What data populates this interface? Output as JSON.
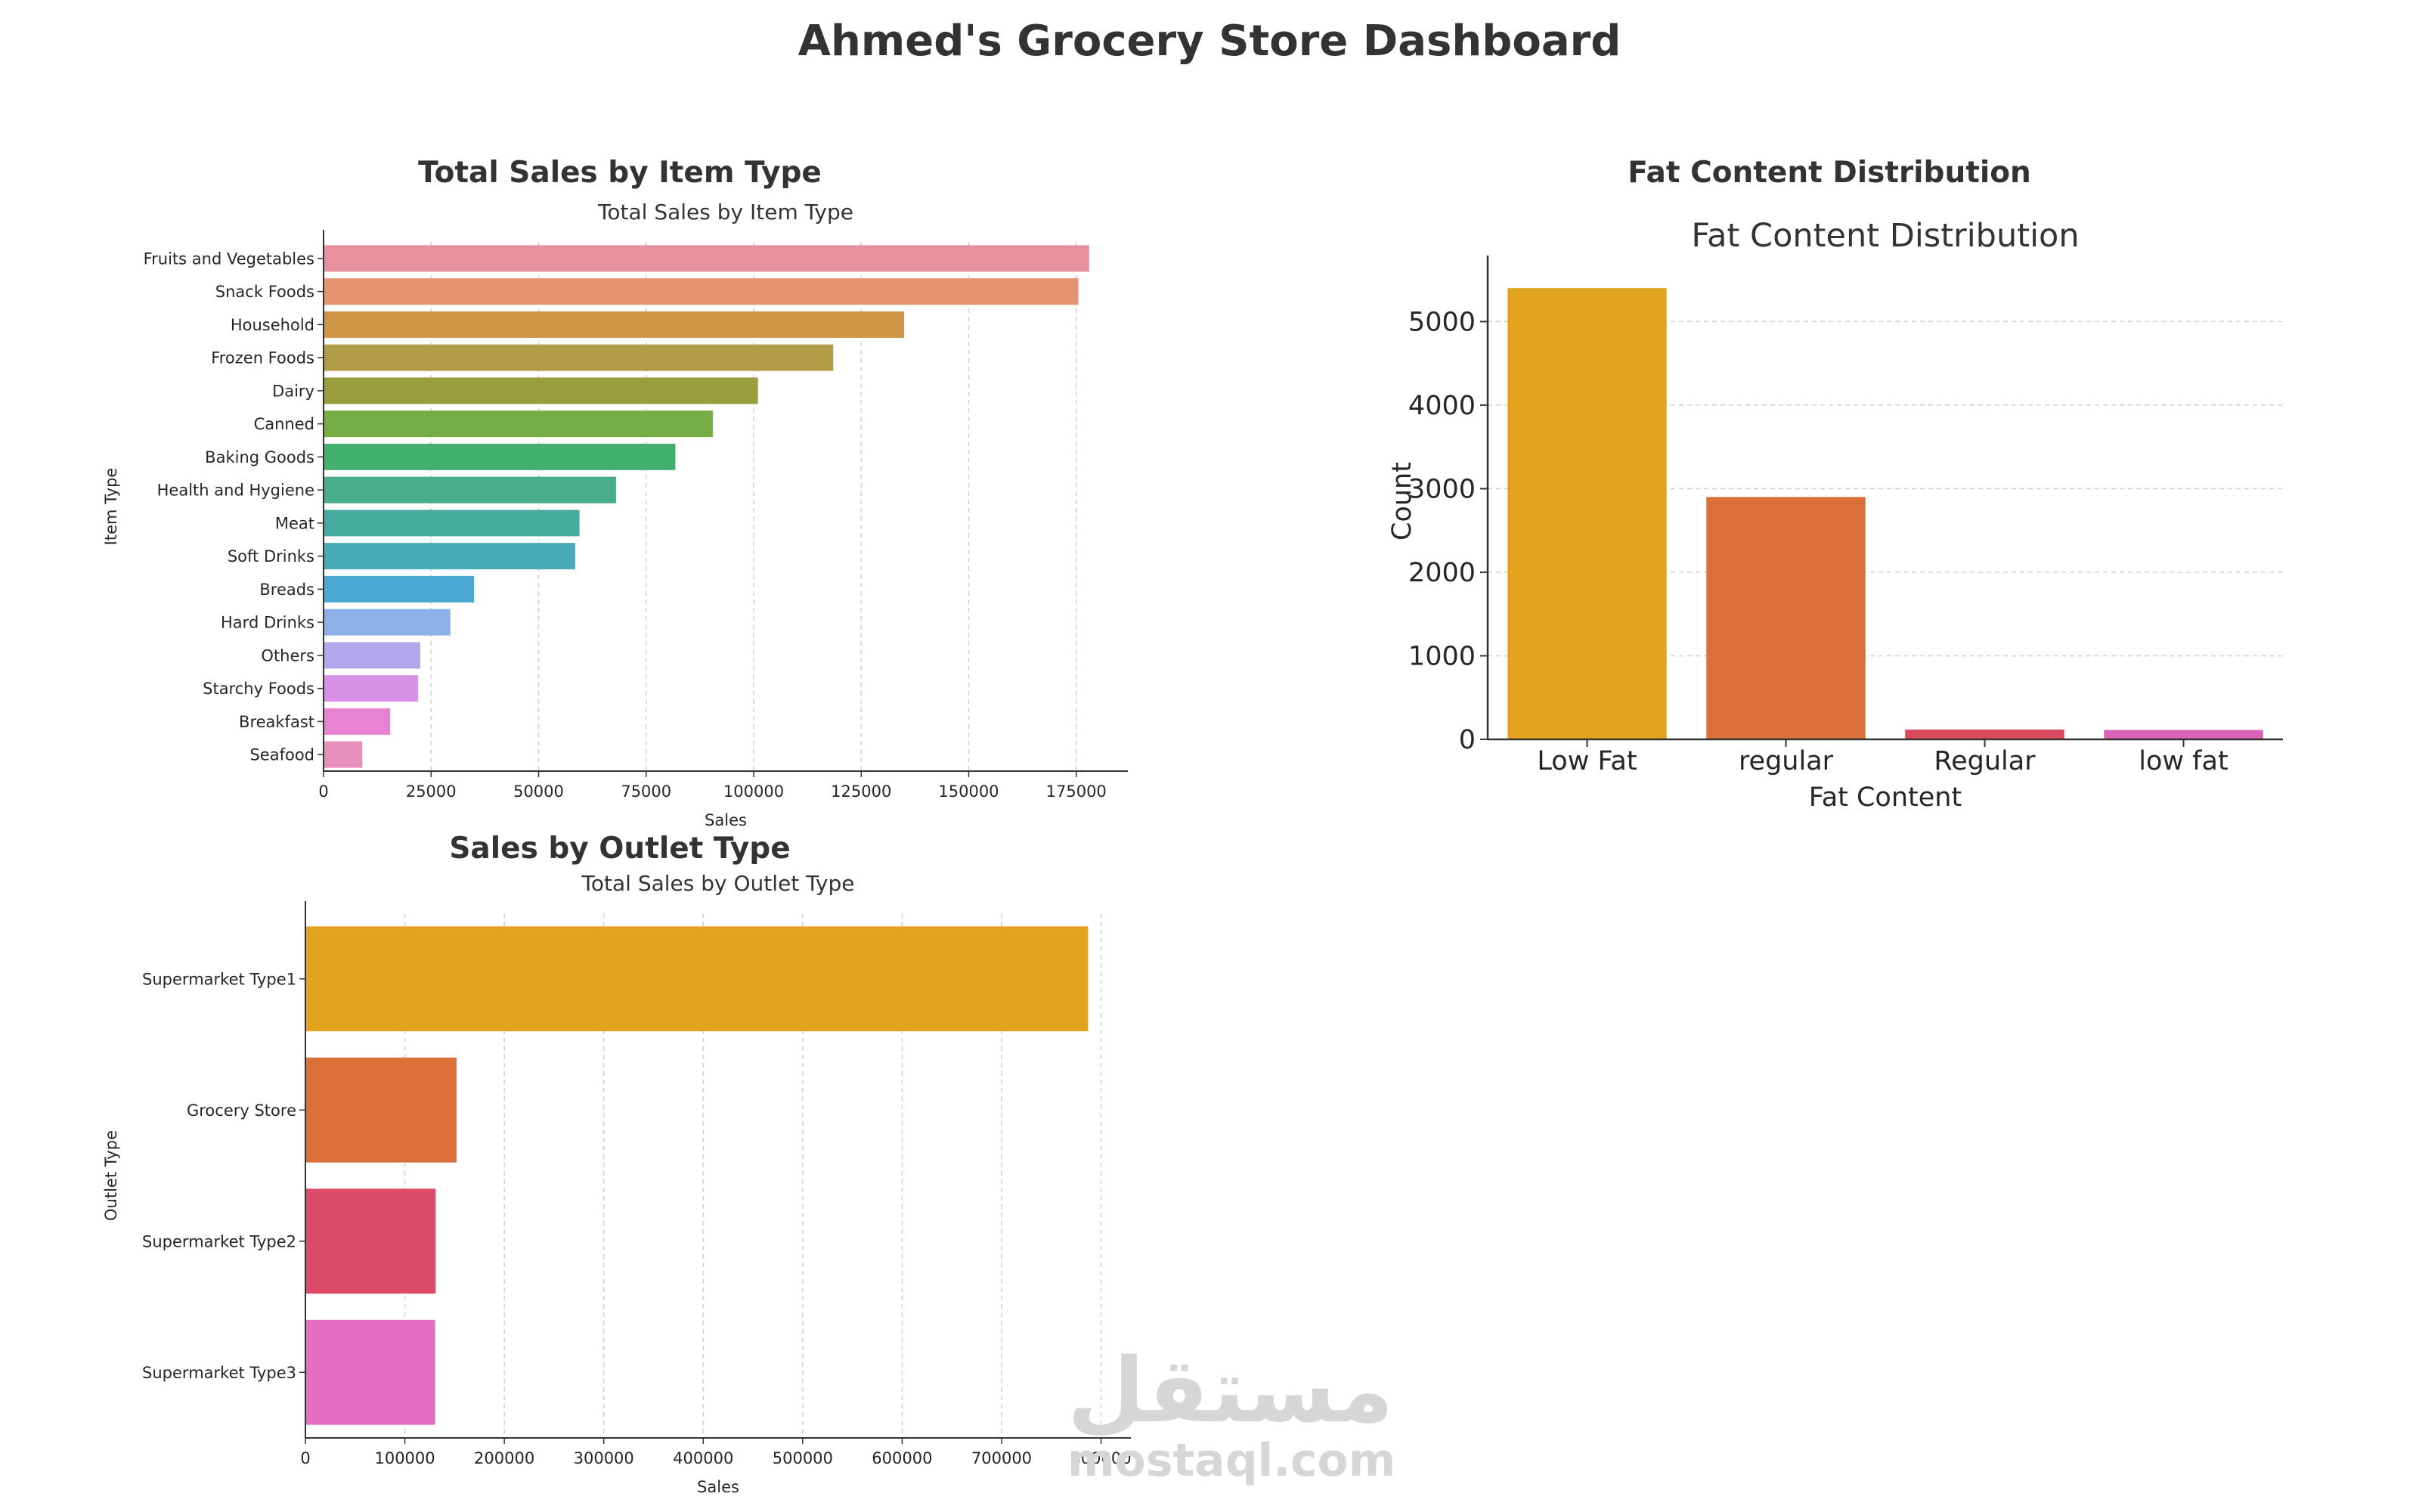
{
  "dashboard_title": "Ahmed's Grocery Store Dashboard",
  "panels": {
    "item_type": {
      "title": "Total Sales by Item Type"
    },
    "fat_content": {
      "title": "Fat Content Distribution"
    },
    "outlet_type": {
      "title": "Sales by Outlet Type"
    }
  },
  "watermark": {
    "arabic": "مستقل",
    "latin": "mostaql.com"
  },
  "chart_data": [
    {
      "type": "bar",
      "orientation": "horizontal",
      "title": "Total Sales by Item Type",
      "xlabel": "Sales",
      "ylabel": "Item Type",
      "xlim": [
        0,
        187000
      ],
      "xticks": [
        0,
        25000,
        50000,
        75000,
        100000,
        125000,
        150000,
        175000
      ],
      "grid": "x-dashed",
      "categories": [
        "Fruits and Vegetables",
        "Snack Foods",
        "Household",
        "Frozen Foods",
        "Dairy",
        "Canned",
        "Baking Goods",
        "Health and Hygiene",
        "Meat",
        "Soft Drinks",
        "Breads",
        "Hard Drinks",
        "Others",
        "Starchy Foods",
        "Breakfast",
        "Seafood"
      ],
      "values": [
        178000,
        175500,
        135000,
        118500,
        101000,
        90500,
        81800,
        68000,
        59500,
        58500,
        35000,
        29500,
        22500,
        22000,
        15500,
        9000
      ],
      "colors": [
        "#e8919d",
        "#e6936f",
        "#ce9546",
        "#b09c46",
        "#999e3d",
        "#76ac44",
        "#44b06f",
        "#47ad8c",
        "#47aa9f",
        "#49aab8",
        "#4aa8d2",
        "#8db0e6",
        "#b3a7ec",
        "#d791e6",
        "#e883d2",
        "#e88fbd"
      ]
    },
    {
      "type": "bar",
      "orientation": "vertical",
      "title": "Fat Content Distribution",
      "xlabel": "Fat Content",
      "ylabel": "Count",
      "ylim": [
        0,
        5700
      ],
      "yticks": [
        0,
        1000,
        2000,
        3000,
        4000,
        5000
      ],
      "grid": "y-dashed",
      "categories": [
        "Low Fat",
        "regular",
        "Regular",
        "low fat"
      ],
      "values": [
        5400,
        2900,
        117,
        112
      ],
      "colors": [
        "#e2a31e",
        "#dc6f38",
        "#d94a5e",
        "#da64b8"
      ]
    },
    {
      "type": "bar",
      "orientation": "horizontal",
      "title": "Total Sales by Outlet Type",
      "xlabel": "Sales",
      "ylabel": "Outlet Type",
      "xlim": [
        0,
        830000
      ],
      "xticks": [
        0,
        100000,
        200000,
        300000,
        400000,
        500000,
        600000,
        700000,
        800000
      ],
      "grid": "x-dashed",
      "categories": [
        "Supermarket Type1",
        "Grocery Store",
        "Supermarket Type2",
        "Supermarket Type3"
      ],
      "values": [
        787000,
        152000,
        131000,
        130500
      ],
      "colors": [
        "#e2a31e",
        "#dc6f38",
        "#de4b68",
        "#e56dc2"
      ]
    }
  ]
}
